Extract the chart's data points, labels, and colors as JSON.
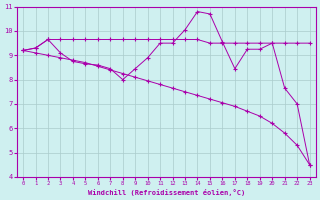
{
  "x": [
    0,
    1,
    2,
    3,
    4,
    5,
    6,
    7,
    8,
    9,
    10,
    11,
    12,
    13,
    14,
    15,
    16,
    17,
    18,
    19,
    20,
    21,
    22,
    23
  ],
  "line1": [
    9.2,
    9.3,
    9.65,
    9.65,
    9.65,
    9.65,
    9.65,
    9.65,
    9.65,
    9.65,
    9.65,
    9.65,
    9.65,
    9.65,
    9.65,
    9.5,
    9.5,
    9.5,
    9.5,
    9.5,
    9.5,
    9.5,
    9.5,
    9.5
  ],
  "line2": [
    9.2,
    9.3,
    9.65,
    9.1,
    8.75,
    8.65,
    8.6,
    8.45,
    8.0,
    8.45,
    8.9,
    9.5,
    9.5,
    10.05,
    10.8,
    10.7,
    9.55,
    8.45,
    9.25,
    9.25,
    9.5,
    7.65,
    7.0,
    4.5
  ],
  "line3": [
    9.2,
    9.1,
    9.0,
    8.9,
    8.8,
    8.7,
    8.55,
    8.4,
    8.25,
    8.1,
    7.95,
    7.8,
    7.65,
    7.5,
    7.35,
    7.2,
    7.05,
    6.9,
    6.7,
    6.5,
    6.2,
    5.8,
    5.3,
    4.5
  ],
  "line_color": "#aa00aa",
  "bg_color": "#cff0f0",
  "grid_color": "#aacccc",
  "xlabel": "Windchill (Refroidissement éolien,°C)",
  "ylim": [
    4,
    11
  ],
  "xlim": [
    -0.5,
    23.5
  ],
  "yticks": [
    4,
    5,
    6,
    7,
    8,
    9,
    10,
    11
  ],
  "xticks": [
    0,
    1,
    2,
    3,
    4,
    5,
    6,
    7,
    8,
    9,
    10,
    11,
    12,
    13,
    14,
    15,
    16,
    17,
    18,
    19,
    20,
    21,
    22,
    23
  ]
}
